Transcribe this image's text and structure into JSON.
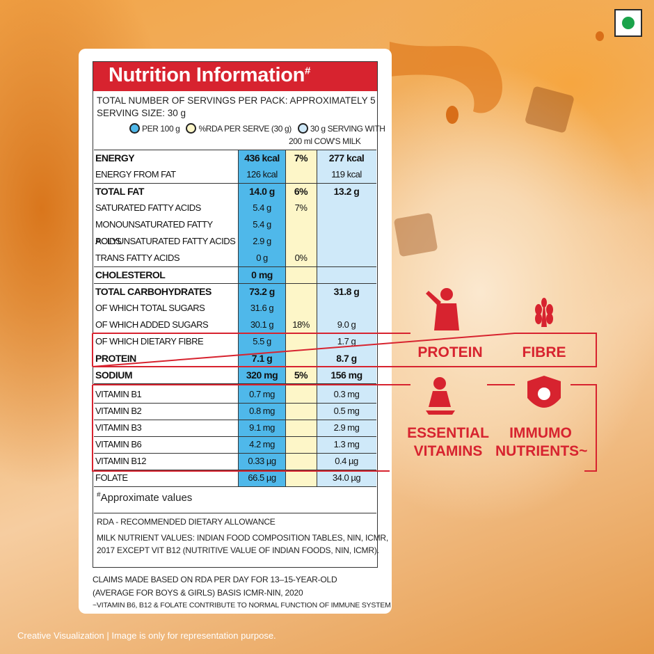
{
  "header": {
    "title": "Nutrition Information",
    "title_mark": "#"
  },
  "servings": "TOTAL NUMBER OF SERVINGS PER PACK: APPROXIMATELY 5",
  "serving_size": "SERVING SIZE: 30 g",
  "legend": {
    "per_100g": "PER 100 g",
    "rda": "%RDA PER SERVE (30 g)",
    "with_milk": [
      "30 g SERVING WITH",
      "200 ml COW'S MILK"
    ]
  },
  "table": {
    "rows": [
      {
        "label": "ENERGY",
        "per_100g": "436 kcal",
        "rda": "7%",
        "with_milk": "277 kcal"
      },
      {
        "label": "ENERGY FROM FAT",
        "per_100g": "126 kcal",
        "with_milk": "119 kcal"
      },
      {
        "label": "TOTAL FAT",
        "per_100g": "14.0 g",
        "rda": "6%",
        "with_milk": "13.2 g"
      },
      {
        "label": "SATURATED FATTY ACIDS",
        "per_100g": "5.4 g",
        "rda": "7%"
      },
      {
        "label": "MONOUNSATURATED FATTY ACIDS",
        "per_100g": "5.4 g"
      },
      {
        "label": "POLYUNSATURATED FATTY ACIDS",
        "per_100g": "2.9 g"
      },
      {
        "label": "TRANS FATTY ACIDS",
        "per_100g": "0 g",
        "rda": "0%"
      },
      {
        "label": "CHOLESTEROL",
        "per_100g": "0 mg"
      },
      {
        "label": "TOTAL CARBOHYDRATES",
        "per_100g": "73.2 g",
        "with_milk": "31.8 g"
      },
      {
        "label": "OF WHICH TOTAL SUGARS",
        "per_100g": "31.6 g"
      },
      {
        "label": "OF WHICH ADDED SUGARS",
        "per_100g": "30.1 g",
        "rda": "18%",
        "with_milk": "9.0 g"
      },
      {
        "label": "OF WHICH DIETARY FIBRE",
        "per_100g": "5.5 g",
        "with_milk": "1.7 g"
      },
      {
        "label": "PROTEIN",
        "per_100g": "7.1 g",
        "with_milk": "8.7 g"
      },
      {
        "label": "SODIUM",
        "per_100g": "320 mg",
        "rda": "5%",
        "with_milk": "156 mg"
      },
      {
        "label": "VITAMIN B1",
        "per_100g": "0.7 mg",
        "with_milk": "0.3 mg"
      },
      {
        "label": "VITAMIN B2",
        "per_100g": "0.8 mg",
        "with_milk": "0.5 mg"
      },
      {
        "label": "VITAMIN B3",
        "per_100g": "9.1 mg",
        "with_milk": "2.9 mg"
      },
      {
        "label": "VITAMIN B6",
        "per_100g": "4.2 mg",
        "with_milk": "1.3 mg"
      },
      {
        "label": "VITAMIN B12",
        "per_100g": "0.33 µg",
        "with_milk": "0.4 µg"
      },
      {
        "label": "FOLATE",
        "per_100g": "66.5 µg",
        "with_milk": "34.0 µg"
      }
    ]
  },
  "approx_mark": "#",
  "approx": "Approximate values",
  "rda_note": "RDA - RECOMMENDED DIETARY ALLOWANCE",
  "milk_note": [
    "MILK NUTRIENT VALUES: INDIAN FOOD COMPOSITION TABLES, NIN, ICMR,",
    "2017 EXCEPT VIT B12 (NUTRITIVE VALUE OF INDIAN FOODS, NIN, ICMR)."
  ],
  "claims": [
    "CLAIMS MADE BASED ON RDA PER DAY FOR 13–15-YEAR-OLD",
    "(AVERAGE FOR BOYS & GIRLS) BASIS ICMR-NIN, 2020",
    "~VITAMIN B6, B12 & FOLATE CONTRIBUTE TO NORMAL FUNCTION OF IMMUNE SYSTEM"
  ],
  "benefits": [
    "PROTEIN",
    "FIBRE",
    "ESSENTIAL VITAMINS",
    "IMMUMO NUTRIENTS~"
  ],
  "disclaimer": "Creative Visualization | Image is only for representation purpose."
}
